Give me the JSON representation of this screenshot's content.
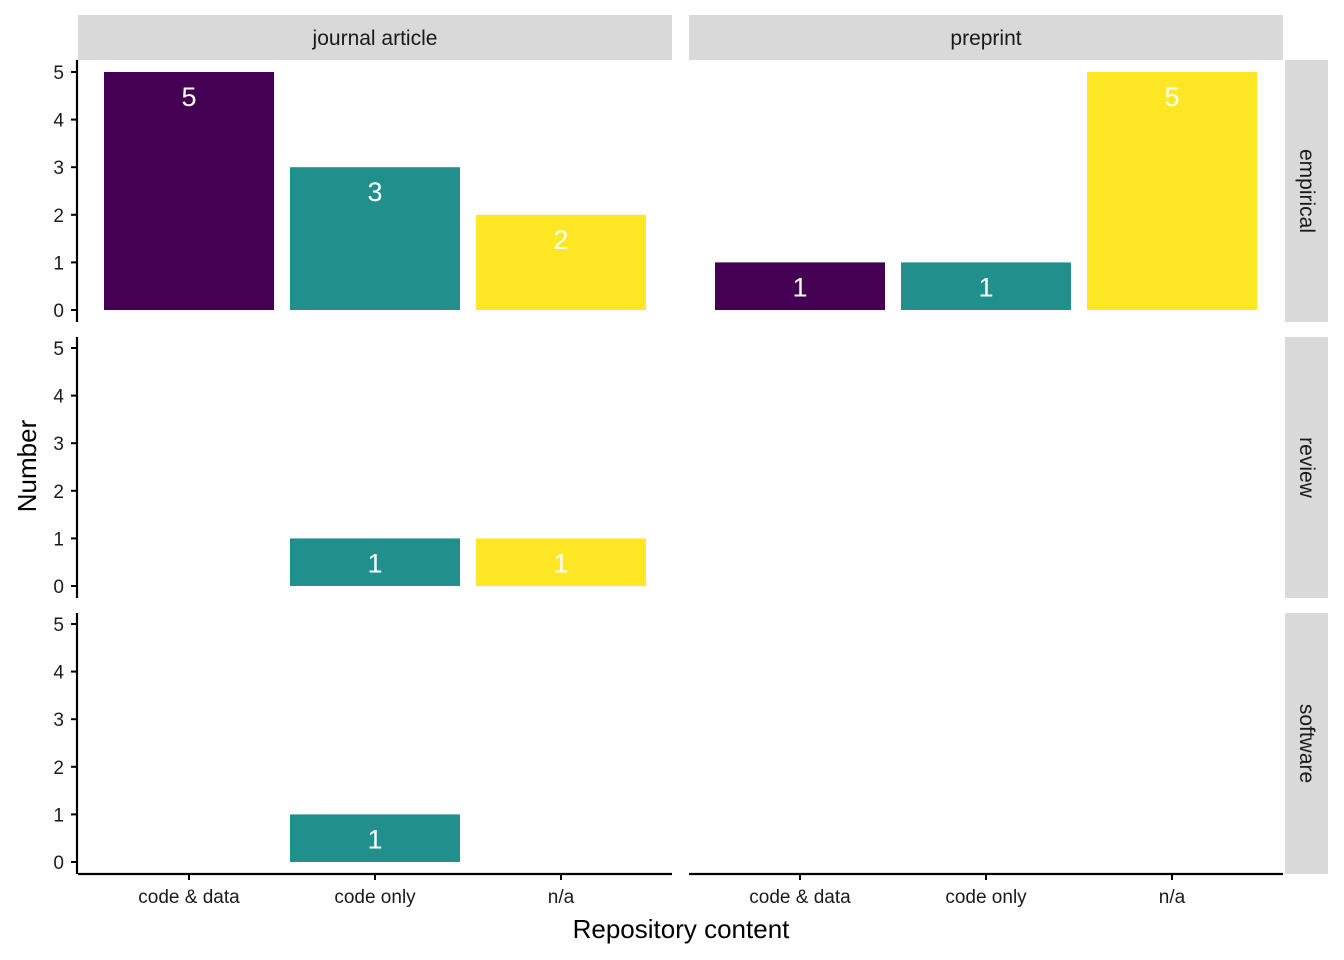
{
  "chart_data": {
    "type": "bar",
    "xlabel": "Repository content",
    "ylabel": "Number",
    "categories": [
      "code & data",
      "code only",
      "n/a"
    ],
    "column_facets": [
      "journal article",
      "preprint"
    ],
    "row_facets": [
      "empirical",
      "review",
      "software"
    ],
    "y_ticks": [
      "0",
      "1",
      "2",
      "3",
      "4",
      "5"
    ],
    "ylim": [
      0,
      5
    ],
    "grid": false,
    "legend": "none",
    "colors": {
      "code & data": "#440154",
      "code only": "#21908c",
      "n/a": "#fde725"
    },
    "panels": [
      {
        "column": "journal article",
        "row": "empirical",
        "values": [
          5,
          3,
          2
        ]
      },
      {
        "column": "preprint",
        "row": "empirical",
        "values": [
          1,
          1,
          5
        ]
      },
      {
        "column": "journal article",
        "row": "review",
        "values": [
          null,
          1,
          1
        ]
      },
      {
        "column": "preprint",
        "row": "review",
        "values": [
          null,
          null,
          null
        ]
      },
      {
        "column": "journal article",
        "row": "software",
        "values": [
          null,
          1,
          null
        ]
      },
      {
        "column": "preprint",
        "row": "software",
        "values": [
          null,
          null,
          null
        ]
      }
    ]
  }
}
